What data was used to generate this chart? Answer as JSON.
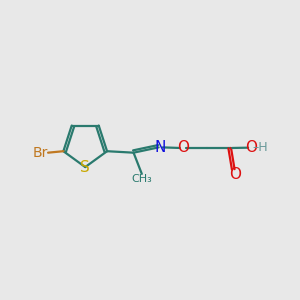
{
  "background_color": "#e8e8e8",
  "atom_colors": {
    "Br": "#c07820",
    "S": "#c8a800",
    "N": "#1010dd",
    "O": "#dd1010",
    "C_bond": "#2a7a6e",
    "H": "#6a9a9a"
  },
  "bond_color": "#2a7a6e",
  "bond_width": 1.6,
  "font_size": 10,
  "fig_width": 3.0,
  "fig_height": 3.0,
  "dpi": 100
}
